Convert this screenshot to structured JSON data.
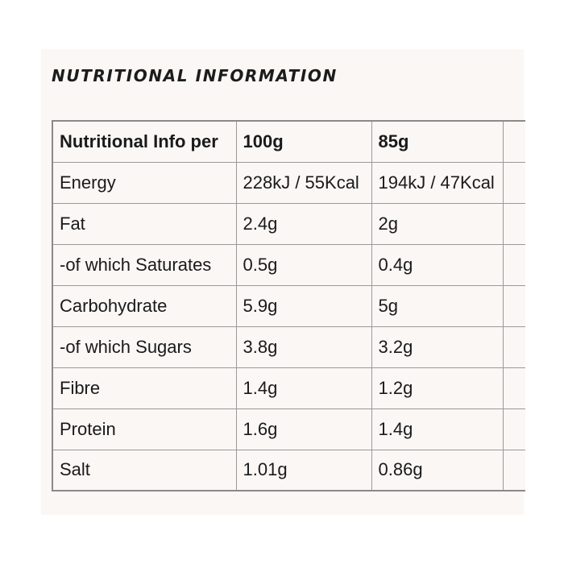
{
  "heading": "NUTRITIONAL INFORMATION",
  "table": {
    "header": {
      "label": "Nutritional Info per",
      "col_100g": "100g",
      "col_85g": "85g"
    },
    "rows": [
      {
        "label": "Energy",
        "per_100g": "228kJ / 55Kcal",
        "per_85g": "194kJ / 47Kcal"
      },
      {
        "label": "Fat",
        "per_100g": "2.4g",
        "per_85g": "2g"
      },
      {
        "label": "-of which Saturates",
        "per_100g": "0.5g",
        "per_85g": "0.4g"
      },
      {
        "label": "Carbohydrate",
        "per_100g": "5.9g",
        "per_85g": "5g"
      },
      {
        "label": "-of which Sugars",
        "per_100g": "3.8g",
        "per_85g": "3.2g"
      },
      {
        "label": "Fibre",
        "per_100g": "1.4g",
        "per_85g": "1.2g"
      },
      {
        "label": "Protein",
        "per_100g": "1.6g",
        "per_85g": "1.4g"
      },
      {
        "label": "Salt",
        "per_100g": "1.01g",
        "per_85g": "0.86g"
      }
    ]
  }
}
